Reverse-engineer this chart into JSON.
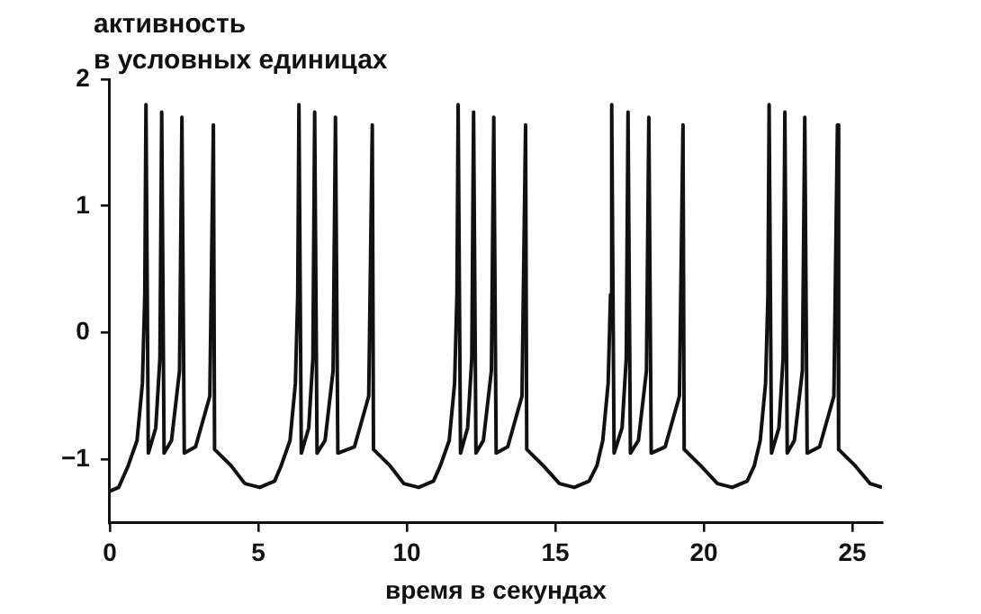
{
  "chart_data": {
    "type": "line",
    "ylabel": "активность\nв условных единицах",
    "xlabel": "время в секундах",
    "xlim": [
      0,
      26
    ],
    "xticks": [
      0,
      5,
      10,
      15,
      20,
      25
    ],
    "ylim": [
      -1.5,
      2
    ],
    "yticks": [
      {
        "value": -1,
        "label": "−1"
      },
      0,
      1,
      2
    ],
    "grid": false,
    "legend": false,
    "marker": "none",
    "line_style": "solid",
    "series": [
      {
        "color": "#111111",
        "x": [
          0,
          0.3,
          0.62,
          0.92,
          1.1,
          1.18,
          1.22,
          1.3,
          1.55,
          1.69,
          1.75,
          1.83,
          2.08,
          2.35,
          2.43,
          2.51,
          2.89,
          3.37,
          3.49,
          3.53,
          4.09,
          4.55,
          5.05,
          5.55,
          5.77,
          6.07,
          6.25,
          6.33,
          6.37,
          6.45,
          6.7,
          6.84,
          6.9,
          6.98,
          7.25,
          7.52,
          7.6,
          7.68,
          8.24,
          8.72,
          8.84,
          8.88,
          9.44,
          9.9,
          10.4,
          10.9,
          11.13,
          11.43,
          11.61,
          11.69,
          11.73,
          11.81,
          12.05,
          12.19,
          12.25,
          12.33,
          12.58,
          12.85,
          12.93,
          13.01,
          13.4,
          13.88,
          14.0,
          14.04,
          14.6,
          15.14,
          15.64,
          16.14,
          16.4,
          16.6,
          16.78,
          16.86,
          16.9,
          16.98,
          17.25,
          17.39,
          17.45,
          17.53,
          17.8,
          18.07,
          18.15,
          18.23,
          18.7,
          19.18,
          19.3,
          19.34,
          19.9,
          20.46,
          20.96,
          21.46,
          21.7,
          21.9,
          22.08,
          22.16,
          22.2,
          22.28,
          22.53,
          22.67,
          22.73,
          22.81,
          23.05,
          23.32,
          23.4,
          23.48,
          23.9,
          24.38,
          24.5,
          24.54,
          25.1,
          25.6,
          26
        ],
        "values": [
          -1.25,
          -1.22,
          -1.05,
          -0.85,
          -0.4,
          0.3,
          1.8,
          -0.95,
          -0.75,
          -0.2,
          1.74,
          -0.95,
          -0.85,
          -0.3,
          1.7,
          -0.95,
          -0.9,
          -0.5,
          1.64,
          -0.92,
          -1.05,
          -1.19,
          -1.22,
          -1.17,
          -1.05,
          -0.85,
          -0.4,
          0.3,
          1.8,
          -0.95,
          -0.75,
          -0.2,
          1.74,
          -0.95,
          -0.85,
          -0.3,
          1.7,
          -0.95,
          -0.9,
          -0.5,
          1.64,
          -0.92,
          -1.05,
          -1.19,
          -1.22,
          -1.17,
          -1.05,
          -0.85,
          -0.4,
          0.3,
          1.8,
          -0.95,
          -0.75,
          -0.2,
          1.74,
          -0.95,
          -0.85,
          -0.3,
          1.7,
          -0.95,
          -0.9,
          -0.5,
          1.64,
          -0.92,
          -1.05,
          -1.19,
          -1.22,
          -1.17,
          -1.05,
          -0.85,
          -0.4,
          0.3,
          1.8,
          -0.95,
          -0.75,
          -0.2,
          1.74,
          -0.95,
          -0.85,
          -0.3,
          1.7,
          -0.95,
          -0.9,
          -0.5,
          1.64,
          -0.92,
          -1.05,
          -1.19,
          -1.22,
          -1.17,
          -1.05,
          -0.85,
          -0.4,
          0.3,
          1.8,
          -0.95,
          -0.75,
          -0.2,
          1.74,
          -0.95,
          -0.85,
          -0.3,
          1.7,
          -0.95,
          -0.9,
          -0.5,
          1.64,
          -0.92,
          -1.05,
          -1.19,
          -1.22
        ]
      }
    ]
  }
}
